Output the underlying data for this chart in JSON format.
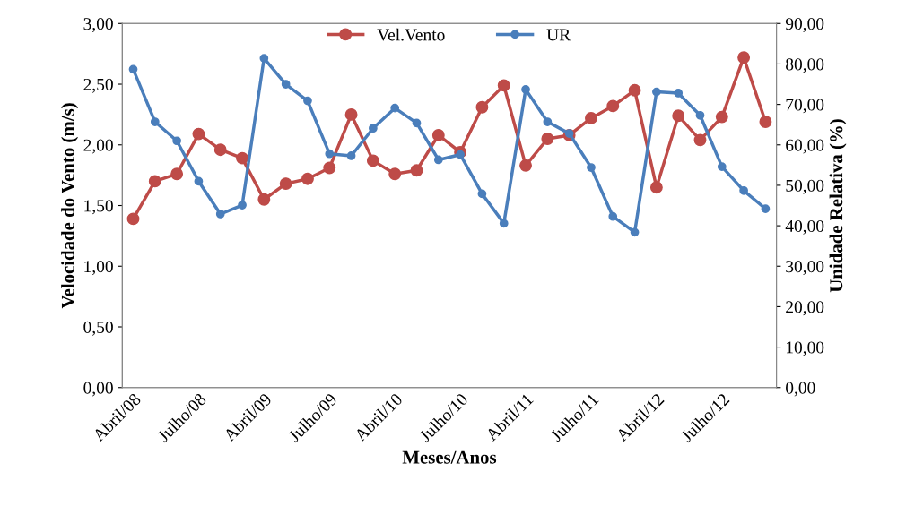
{
  "chart_data": {
    "type": "line",
    "xlabel": "Meses/Anos",
    "ylabel": "Velocidade do Vento (m/s)",
    "y2label": "Unidade Relativa (%)",
    "categories": [
      "Abril/08",
      null,
      null,
      "Julho/08",
      null,
      null,
      "Abril/09",
      null,
      null,
      "Julho/09",
      null,
      null,
      "Abril/10",
      null,
      null,
      "Julho/10",
      null,
      null,
      "Abril/11",
      null,
      null,
      "Julho/11",
      null,
      null,
      "Abril/12",
      null,
      null,
      "Julho/12",
      null,
      null
    ],
    "series": [
      {
        "name": "Vel.Vento",
        "color": "#be4b48",
        "values": [
          1.39,
          1.7,
          1.76,
          2.09,
          1.96,
          1.89,
          1.55,
          1.68,
          1.72,
          1.81,
          2.25,
          1.87,
          1.76,
          1.79,
          2.08,
          1.94,
          2.31,
          2.49,
          1.83,
          2.05,
          2.08,
          2.22,
          2.32,
          2.45,
          1.65,
          2.24,
          2.04,
          2.23,
          2.72,
          2.19
        ]
      },
      {
        "name": "UR",
        "color": "#4a7ebb",
        "axis": "y2",
        "values": [
          78.7,
          65.7,
          61.0,
          51.0,
          42.9,
          45.1,
          81.4,
          75.0,
          70.9,
          57.8,
          57.3,
          64.1,
          69.1,
          65.4,
          56.3,
          57.6,
          47.9,
          40.6,
          73.7,
          65.7,
          62.8,
          54.4,
          42.3,
          38.4,
          73.1,
          72.8,
          67.3,
          54.6,
          48.7,
          44.2
        ]
      }
    ],
    "ylim": [
      0,
      3
    ],
    "yticks": [
      {
        "value": 0,
        "label": "0,00"
      },
      {
        "value": 0.5,
        "label": "0,50"
      },
      {
        "value": 1,
        "label": "1,00"
      },
      {
        "value": 1.5,
        "label": "1,50"
      },
      {
        "value": 2,
        "label": "2,00"
      },
      {
        "value": 2.5,
        "label": "2,50"
      },
      {
        "value": 3,
        "label": "3,00"
      }
    ],
    "y2lim": [
      0,
      90
    ],
    "y2ticks": [
      {
        "value": 0,
        "label": "0,00"
      },
      {
        "value": 10,
        "label": "10,00"
      },
      {
        "value": 20,
        "label": "20,00"
      },
      {
        "value": 30,
        "label": "30,00"
      },
      {
        "value": 40,
        "label": "40,00"
      },
      {
        "value": 50,
        "label": "50,00"
      },
      {
        "value": 60,
        "label": "60,00"
      },
      {
        "value": 70,
        "label": "70,00"
      },
      {
        "value": 80,
        "label": "80,00"
      },
      {
        "value": 90,
        "label": "90,00"
      }
    ],
    "marker": "circle",
    "line_style": "solid",
    "grid": false,
    "legend": "top"
  }
}
